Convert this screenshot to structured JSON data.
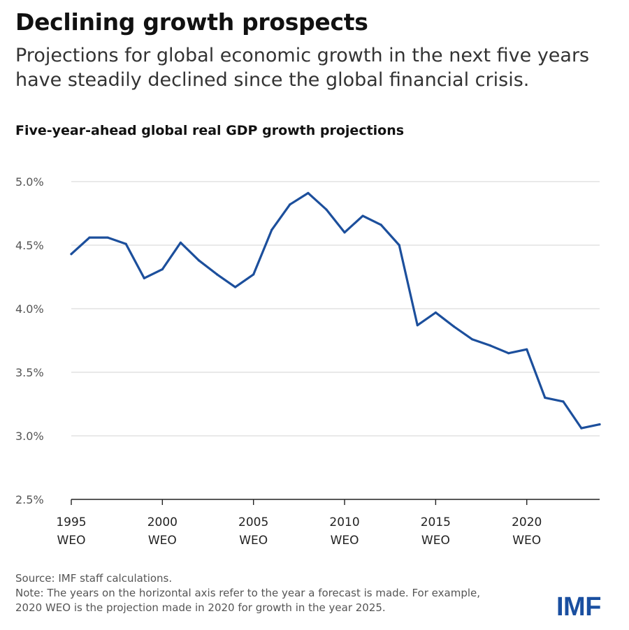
{
  "header": {
    "title": "Declining growth prospects",
    "subtitle_line1": "Projections for global economic growth in the next five years",
    "subtitle_line2": "have steadily declined since the global financial crisis."
  },
  "chart_data": {
    "type": "line",
    "title": "Five-year-ahead global real GDP growth projections",
    "x_label_suffix": "WEO",
    "x_ticks": [
      1995,
      2000,
      2005,
      2010,
      2015,
      2020
    ],
    "x_range": [
      1995,
      2024
    ],
    "y_ticks": [
      "2.5%",
      "3.0%",
      "3.5%",
      "4.0%",
      "4.5%",
      "5.0%"
    ],
    "y_tick_values": [
      2.5,
      3.0,
      3.5,
      4.0,
      4.5,
      5.0
    ],
    "ylim": [
      2.5,
      5.0
    ],
    "grid": true,
    "line_color": "#1c4f9c",
    "series": [
      {
        "x": [
          1995,
          1996,
          1997,
          1998,
          1999,
          2000,
          2001,
          2002,
          2003,
          2004,
          2005,
          2006,
          2007,
          2008,
          2009,
          2010,
          2011,
          2012,
          2013,
          2014,
          2015,
          2016,
          2017,
          2018,
          2019,
          2020,
          2021,
          2022,
          2023,
          2024
        ],
        "values": [
          4.43,
          4.56,
          4.56,
          4.51,
          4.24,
          4.31,
          4.52,
          4.38,
          4.27,
          4.17,
          4.27,
          4.62,
          4.82,
          4.91,
          4.78,
          4.6,
          4.73,
          4.66,
          4.5,
          3.87,
          3.97,
          3.86,
          3.76,
          3.71,
          3.65,
          3.68,
          3.3,
          3.27,
          3.06,
          3.09
        ]
      }
    ]
  },
  "footer": {
    "source": "Source: IMF staff calculations.",
    "note_line1": "Note: The years on the horizontal axis refer to the year a forecast is made. For example,",
    "note_line2": "2020 WEO is the projection made in 2020 for growth in the year 2025."
  },
  "logo": {
    "text": "IMF",
    "color": "#1a4fa0"
  }
}
